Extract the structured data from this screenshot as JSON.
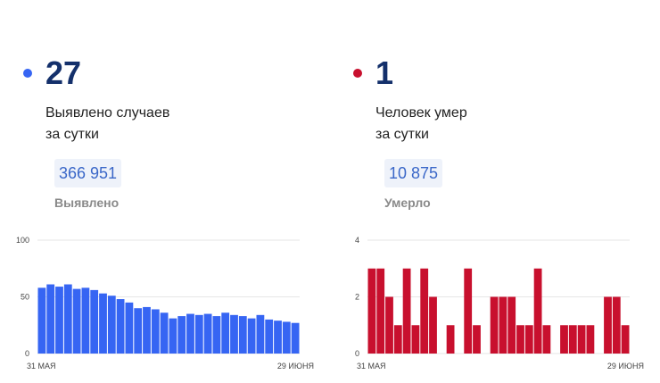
{
  "panels": [
    {
      "color": "#3665f3",
      "number": "27",
      "caption_line1": "Выявлено случаев",
      "caption_line2": "за сутки",
      "total": "366 951",
      "total_label": "Выявлено"
    },
    {
      "color": "#c8102e",
      "number": "1",
      "caption_line1": "Человек умер",
      "caption_line2": "за сутки",
      "total": "10 875",
      "total_label": "Умерло"
    }
  ],
  "chart_data": [
    {
      "type": "bar",
      "color": "#3665f3",
      "x_start_label": "31 МАЯ",
      "x_end_label": "29 ИЮНЯ",
      "ylim": [
        0,
        100
      ],
      "yticks": [
        0,
        50,
        100
      ],
      "grid": true,
      "values": [
        58,
        61,
        59,
        61,
        57,
        58,
        56,
        53,
        51,
        48,
        45,
        40,
        41,
        39,
        36,
        31,
        33,
        35,
        34,
        35,
        33,
        36,
        34,
        33,
        31,
        34,
        30,
        29,
        28,
        27
      ]
    },
    {
      "type": "bar",
      "color": "#c8102e",
      "x_start_label": "31 МАЯ",
      "x_end_label": "29 ИЮНЯ",
      "ylim": [
        0,
        4
      ],
      "yticks": [
        0,
        2,
        4
      ],
      "grid": true,
      "values": [
        3,
        3,
        2,
        1,
        3,
        1,
        3,
        2,
        0,
        1,
        0,
        3,
        1,
        0,
        2,
        2,
        2,
        1,
        1,
        3,
        1,
        0,
        1,
        1,
        1,
        1,
        0,
        2,
        2,
        1
      ]
    }
  ]
}
